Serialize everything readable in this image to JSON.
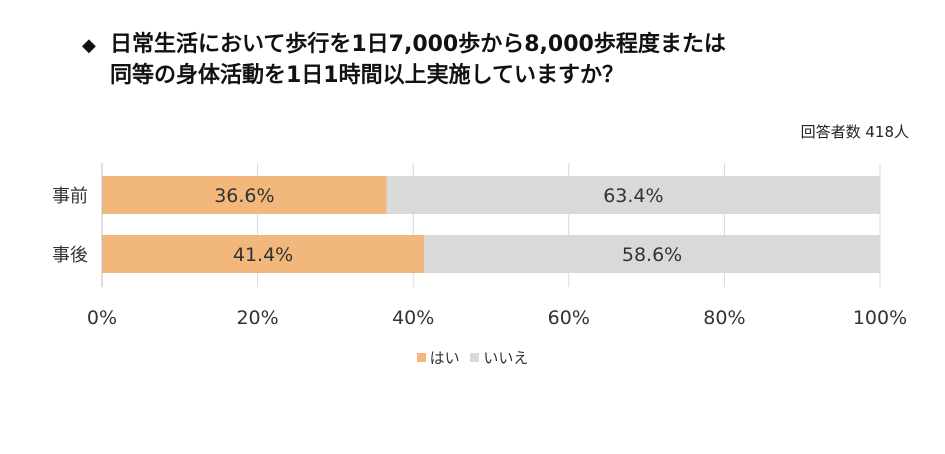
{
  "title": {
    "bullet": "◆",
    "line1": "日常生活において歩行を1日7,000歩から8,000歩程度または",
    "line2": "同等の身体活動を1日1時間以上実施していますか？"
  },
  "respondents": "回答者数 418人",
  "colors": {
    "yes": "#F2B77B",
    "no": "#D9D9D9",
    "grid": "#D9D9D9",
    "axis": "#BFBFBF"
  },
  "chart_data": {
    "type": "bar",
    "orientation": "horizontal",
    "stacked": "percent",
    "categories": [
      "事前",
      "事後"
    ],
    "series": [
      {
        "name": "はい",
        "values": [
          36.6,
          41.4
        ],
        "labels": [
          "36.6%",
          "41.4%"
        ]
      },
      {
        "name": "いいえ",
        "values": [
          63.4,
          58.6
        ],
        "labels": [
          "63.4%",
          "58.6%"
        ]
      }
    ],
    "xlim": [
      0,
      100
    ],
    "xticks": [
      "0%",
      "20%",
      "40%",
      "60%",
      "80%",
      "100%"
    ],
    "grid": true,
    "legend_position": "bottom"
  }
}
